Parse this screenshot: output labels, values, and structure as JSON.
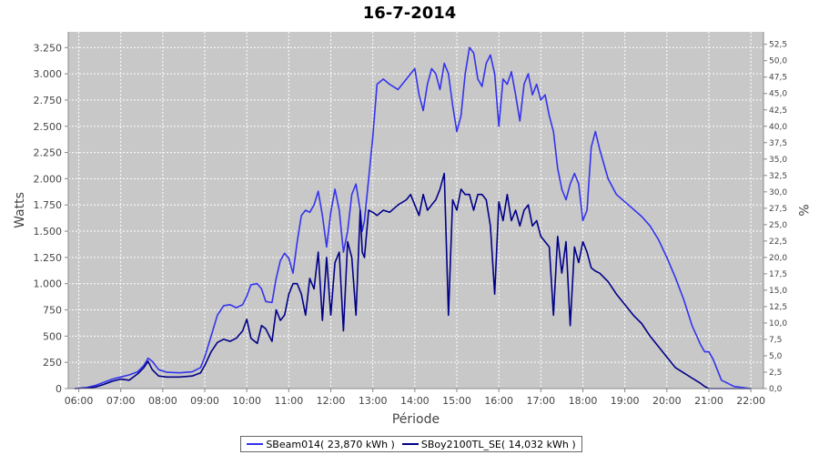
{
  "chart_data": {
    "type": "line",
    "title": "16-7-2014",
    "xlabel": "Période",
    "ylabel": "Watts",
    "y2label": "%",
    "grid": true,
    "legend_position": "bottom",
    "xlim": [
      5.75,
      22.3
    ],
    "ylim": [
      0,
      3400
    ],
    "y2lim": [
      0,
      54.4
    ],
    "x_ticks": [
      6,
      7,
      8,
      9,
      10,
      11,
      12,
      13,
      14,
      15,
      16,
      17,
      18,
      19,
      20,
      21,
      22
    ],
    "x_tick_labels": [
      "06:00",
      "07:00",
      "08:00",
      "09:00",
      "10:00",
      "11:00",
      "12:00",
      "13:00",
      "14:00",
      "15:00",
      "16:00",
      "17:00",
      "18:00",
      "19:00",
      "20:00",
      "21:00",
      "22:00"
    ],
    "y_ticks": [
      0,
      250,
      500,
      750,
      1000,
      1250,
      1500,
      1750,
      2000,
      2250,
      2500,
      2750,
      3000,
      3250
    ],
    "y_tick_labels": [
      "0",
      "250",
      "500",
      "750",
      "1.000",
      "1.250",
      "1.500",
      "1.750",
      "2.000",
      "2.250",
      "2.500",
      "2.750",
      "3.000",
      "3.250"
    ],
    "y2_ticks": [
      0,
      2.5,
      5,
      7.5,
      10,
      12.5,
      15,
      17.5,
      20,
      22.5,
      25,
      27.5,
      30,
      32.5,
      35,
      37.5,
      40,
      42.5,
      45,
      47.5,
      50,
      52.5
    ],
    "y2_tick_labels": [
      "0,0",
      "2,5",
      "5,0",
      "7,5",
      "10,0",
      "12,5",
      "15,0",
      "17,5",
      "20,0",
      "22,5",
      "25,0",
      "27,5",
      "30,0",
      "32,5",
      "35,0",
      "37,5",
      "40,0",
      "42,5",
      "45,0",
      "47,5",
      "50,0",
      "52,5"
    ],
    "series": [
      {
        "name": "SBeam014( 23,870 kWh )",
        "color": "#3333ee",
        "x": [
          5.9,
          6.2,
          6.4,
          6.6,
          6.8,
          7.0,
          7.2,
          7.4,
          7.55,
          7.65,
          7.75,
          7.9,
          8.1,
          8.4,
          8.7,
          8.9,
          9.0,
          9.15,
          9.3,
          9.45,
          9.6,
          9.75,
          9.9,
          10.0,
          10.1,
          10.25,
          10.35,
          10.45,
          10.6,
          10.7,
          10.8,
          10.9,
          11.0,
          11.1,
          11.2,
          11.3,
          11.4,
          11.5,
          11.6,
          11.7,
          11.8,
          11.9,
          12.0,
          12.1,
          12.2,
          12.3,
          12.4,
          12.5,
          12.6,
          12.7,
          12.75,
          12.8,
          12.9,
          13.0,
          13.1,
          13.25,
          13.4,
          13.6,
          13.8,
          13.9,
          14.0,
          14.1,
          14.2,
          14.3,
          14.4,
          14.5,
          14.6,
          14.7,
          14.8,
          14.9,
          15.0,
          15.1,
          15.2,
          15.3,
          15.4,
          15.5,
          15.6,
          15.7,
          15.8,
          15.9,
          16.0,
          16.1,
          16.2,
          16.3,
          16.4,
          16.5,
          16.6,
          16.7,
          16.8,
          16.9,
          17.0,
          17.1,
          17.2,
          17.3,
          17.4,
          17.5,
          17.6,
          17.7,
          17.8,
          17.9,
          18.0,
          18.1,
          18.2,
          18.3,
          18.4,
          18.6,
          18.8,
          19.0,
          19.2,
          19.4,
          19.6,
          19.8,
          20.0,
          20.2,
          20.4,
          20.6,
          20.8,
          20.9,
          21.0,
          21.1,
          21.3,
          21.6,
          22.0
        ],
        "values": [
          0,
          10,
          30,
          60,
          90,
          110,
          130,
          160,
          220,
          290,
          260,
          180,
          155,
          150,
          160,
          200,
          300,
          500,
          700,
          790,
          800,
          770,
          800,
          880,
          990,
          1000,
          950,
          830,
          820,
          1050,
          1220,
          1290,
          1240,
          1100,
          1400,
          1650,
          1700,
          1680,
          1750,
          1880,
          1650,
          1350,
          1680,
          1900,
          1700,
          1300,
          1500,
          1850,
          1950,
          1700,
          1500,
          1600,
          2000,
          2400,
          2900,
          2950,
          2900,
          2850,
          2950,
          3000,
          3050,
          2800,
          2650,
          2900,
          3050,
          3000,
          2850,
          3100,
          3000,
          2700,
          2450,
          2600,
          3000,
          3250,
          3200,
          2950,
          2880,
          3100,
          3180,
          3000,
          2500,
          2950,
          2900,
          3020,
          2800,
          2550,
          2900,
          3000,
          2800,
          2900,
          2750,
          2800,
          2600,
          2450,
          2100,
          1900,
          1800,
          1950,
          2050,
          1950,
          1600,
          1700,
          2300,
          2450,
          2280,
          2000,
          1850,
          1780,
          1710,
          1640,
          1550,
          1420,
          1250,
          1060,
          850,
          600,
          420,
          350,
          350,
          280,
          80,
          20,
          0
        ]
      },
      {
        "name": "SBoy2100TL_SE( 14,032 kWh )",
        "color": "#000088",
        "x": [
          5.9,
          6.2,
          6.4,
          6.6,
          6.8,
          7.0,
          7.2,
          7.4,
          7.55,
          7.65,
          7.75,
          7.9,
          8.1,
          8.4,
          8.7,
          8.9,
          9.0,
          9.15,
          9.3,
          9.45,
          9.6,
          9.75,
          9.9,
          10.0,
          10.1,
          10.25,
          10.35,
          10.45,
          10.6,
          10.7,
          10.8,
          10.9,
          11.0,
          11.1,
          11.2,
          11.3,
          11.4,
          11.5,
          11.6,
          11.7,
          11.8,
          11.9,
          12.0,
          12.1,
          12.2,
          12.3,
          12.4,
          12.5,
          12.6,
          12.7,
          12.75,
          12.8,
          12.9,
          13.0,
          13.1,
          13.25,
          13.4,
          13.6,
          13.8,
          13.9,
          14.0,
          14.1,
          14.2,
          14.3,
          14.4,
          14.5,
          14.6,
          14.7,
          14.8,
          14.9,
          15.0,
          15.1,
          15.2,
          15.3,
          15.4,
          15.5,
          15.6,
          15.7,
          15.8,
          15.9,
          16.0,
          16.1,
          16.2,
          16.3,
          16.4,
          16.5,
          16.6,
          16.7,
          16.8,
          16.9,
          17.0,
          17.1,
          17.2,
          17.3,
          17.4,
          17.5,
          17.6,
          17.7,
          17.8,
          17.9,
          18.0,
          18.1,
          18.2,
          18.3,
          18.4,
          18.6,
          18.8,
          19.0,
          19.2,
          19.4,
          19.6,
          19.8,
          20.0,
          20.2,
          20.4,
          20.6,
          20.8,
          20.9,
          21.0,
          21.1,
          21.3,
          21.6,
          22.0
        ],
        "values": [
          0,
          5,
          15,
          40,
          70,
          90,
          80,
          140,
          200,
          260,
          180,
          120,
          110,
          110,
          120,
          150,
          220,
          350,
          440,
          470,
          450,
          480,
          550,
          660,
          480,
          430,
          600,
          570,
          450,
          750,
          650,
          700,
          900,
          1000,
          1000,
          900,
          700,
          1050,
          950,
          1300,
          650,
          1250,
          700,
          1200,
          1300,
          550,
          1400,
          1250,
          700,
          1700,
          1300,
          1250,
          1700,
          1680,
          1650,
          1700,
          1680,
          1750,
          1800,
          1850,
          1750,
          1650,
          1850,
          1700,
          1750,
          1800,
          1900,
          2050,
          700,
          1800,
          1700,
          1900,
          1850,
          1850,
          1700,
          1850,
          1850,
          1800,
          1550,
          900,
          1780,
          1600,
          1850,
          1600,
          1700,
          1550,
          1700,
          1750,
          1550,
          1600,
          1450,
          1400,
          1350,
          700,
          1450,
          1100,
          1400,
          600,
          1350,
          1200,
          1400,
          1300,
          1150,
          1120,
          1100,
          1020,
          900,
          800,
          700,
          620,
          500,
          400,
          300,
          200,
          150,
          100,
          50,
          20,
          0,
          0,
          0,
          0,
          0
        ]
      }
    ]
  }
}
